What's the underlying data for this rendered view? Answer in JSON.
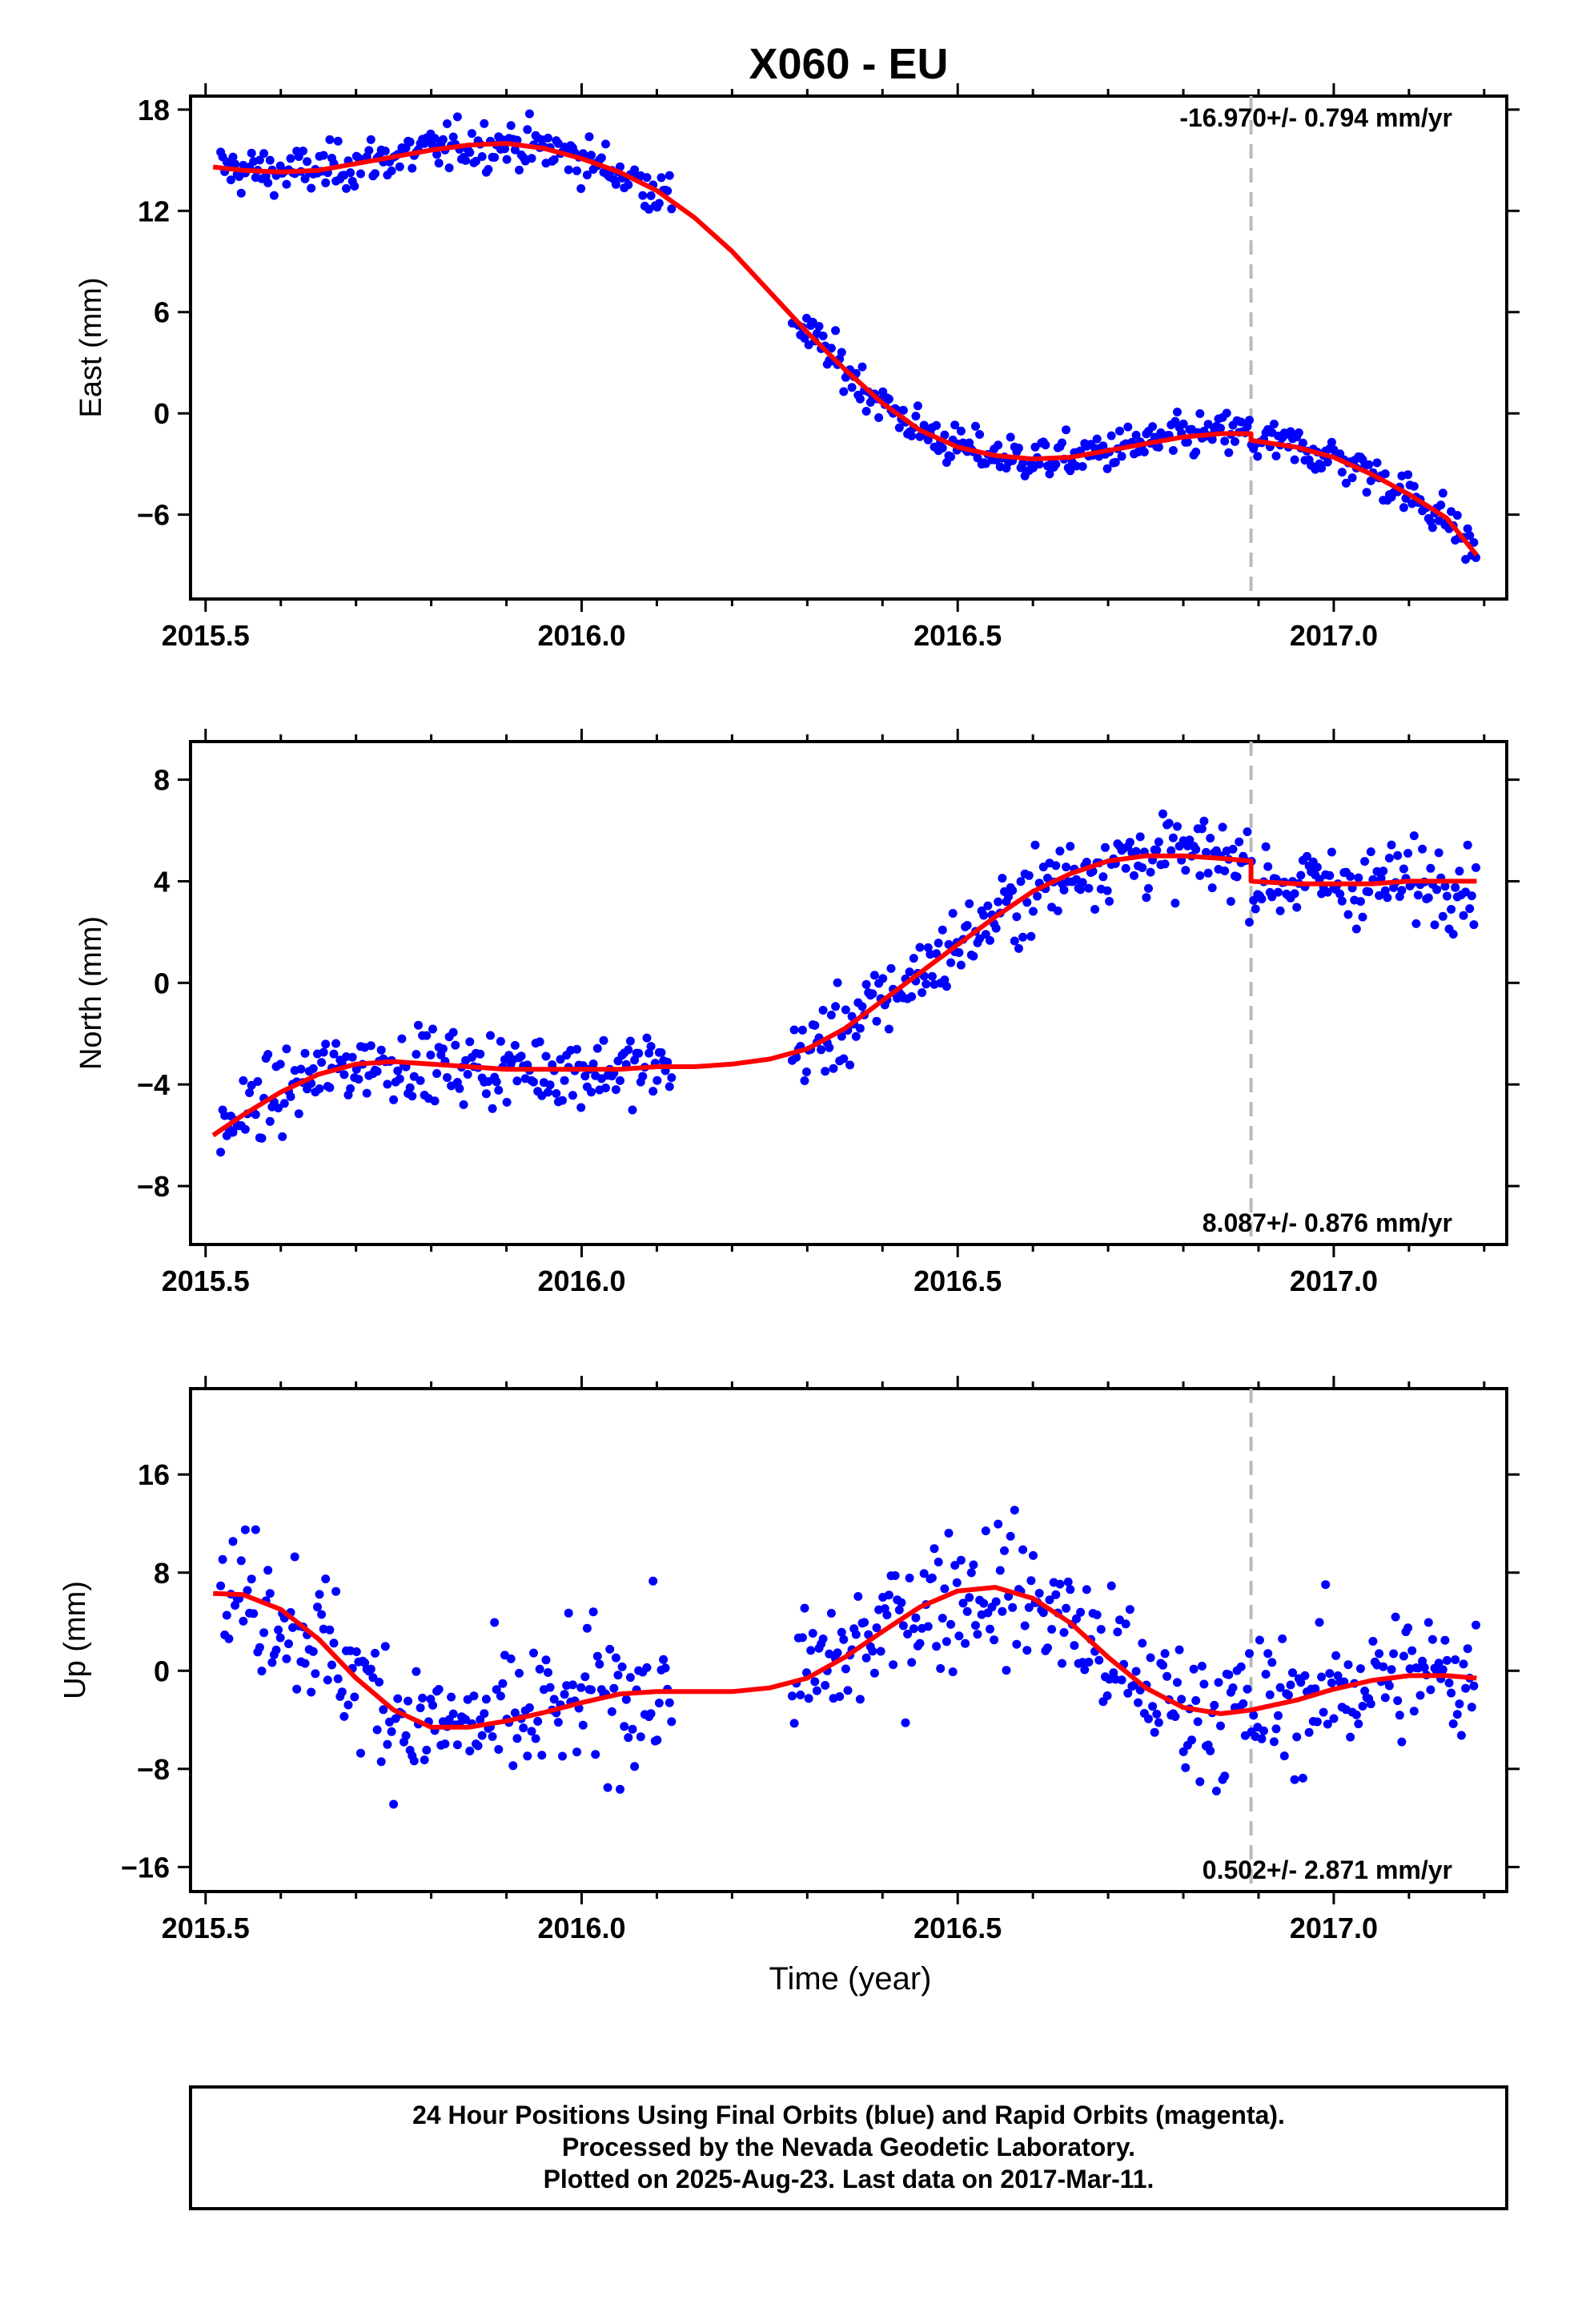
{
  "chart_data": {
    "type": "scatter",
    "title": "X060 - EU",
    "xlabel": "Time (year)",
    "xlim": [
      2015.48,
      2017.23
    ],
    "x_ticks": [
      2015.5,
      2016.0,
      2016.5,
      2017.0
    ],
    "x_tick_labels": [
      "2015.5",
      "2016.0",
      "2016.5",
      "2017.0"
    ],
    "equipment_change": 2016.89,
    "point_color": "#0000ff",
    "fit_color": "#ff0000",
    "marker_color": "#bbbbbb",
    "panels": [
      {
        "ylabel": "East (mm)",
        "ylim": [
          -11.0,
          18.8
        ],
        "y_ticks": [
          18,
          12,
          6,
          0,
          -6
        ],
        "y_tick_labels": [
          "18",
          "12",
          "6",
          "0",
          "−6"
        ],
        "rate_text": "-16.970+/- 0.794 mm/yr",
        "rate_position": "top-right",
        "fit": [
          [
            2015.51,
            14.6
          ],
          [
            2015.55,
            14.4
          ],
          [
            2015.6,
            14.3
          ],
          [
            2015.65,
            14.4
          ],
          [
            2015.7,
            14.8
          ],
          [
            2015.75,
            15.2
          ],
          [
            2015.8,
            15.6
          ],
          [
            2015.85,
            15.9
          ],
          [
            2015.9,
            16.0
          ],
          [
            2015.95,
            15.7
          ],
          [
            2016.0,
            15.1
          ],
          [
            2016.05,
            14.3
          ],
          [
            2016.1,
            13.2
          ],
          [
            2016.15,
            11.6
          ],
          [
            2016.2,
            9.6
          ],
          [
            2016.25,
            7.2
          ],
          [
            2016.3,
            4.8
          ],
          [
            2016.35,
            2.6
          ],
          [
            2016.4,
            0.6
          ],
          [
            2016.45,
            -1.0
          ],
          [
            2016.5,
            -2.0
          ],
          [
            2016.55,
            -2.5
          ],
          [
            2016.6,
            -2.7
          ],
          [
            2016.65,
            -2.6
          ],
          [
            2016.7,
            -2.2
          ],
          [
            2016.75,
            -1.8
          ],
          [
            2016.8,
            -1.4
          ],
          [
            2016.85,
            -1.2
          ],
          [
            2016.89,
            -1.2
          ],
          [
            2016.89,
            -1.6
          ],
          [
            2016.95,
            -2.0
          ],
          [
            2017.0,
            -2.6
          ],
          [
            2017.05,
            -3.6
          ],
          [
            2017.1,
            -4.8
          ],
          [
            2017.15,
            -6.2
          ],
          [
            2017.19,
            -8.4
          ]
        ],
        "segments": [
          {
            "x0": 2015.52,
            "x1": 2016.12,
            "noise": 1.1
          },
          {
            "x0": 2016.28,
            "x1": 2017.19,
            "noise": 1.0
          }
        ]
      },
      {
        "ylabel": "North (mm)",
        "ylim": [
          -10.3,
          9.5
        ],
        "y_ticks": [
          8,
          4,
          0,
          -4,
          -8
        ],
        "y_tick_labels": [
          "8",
          "4",
          "0",
          "−4",
          "−8"
        ],
        "rate_text": "8.087+/- 0.876 mm/yr",
        "rate_position": "bottom-right",
        "fit": [
          [
            2015.51,
            -6.0
          ],
          [
            2015.55,
            -5.2
          ],
          [
            2015.6,
            -4.3
          ],
          [
            2015.65,
            -3.6
          ],
          [
            2015.7,
            -3.2
          ],
          [
            2015.75,
            -3.1
          ],
          [
            2015.8,
            -3.2
          ],
          [
            2015.85,
            -3.3
          ],
          [
            2015.9,
            -3.4
          ],
          [
            2015.95,
            -3.4
          ],
          [
            2016.0,
            -3.4
          ],
          [
            2016.05,
            -3.4
          ],
          [
            2016.1,
            -3.3
          ],
          [
            2016.15,
            -3.3
          ],
          [
            2016.2,
            -3.2
          ],
          [
            2016.25,
            -3.0
          ],
          [
            2016.3,
            -2.6
          ],
          [
            2016.35,
            -1.8
          ],
          [
            2016.4,
            -0.7
          ],
          [
            2016.45,
            0.4
          ],
          [
            2016.5,
            1.5
          ],
          [
            2016.55,
            2.6
          ],
          [
            2016.6,
            3.6
          ],
          [
            2016.65,
            4.3
          ],
          [
            2016.7,
            4.8
          ],
          [
            2016.75,
            5.0
          ],
          [
            2016.8,
            5.0
          ],
          [
            2016.85,
            4.9
          ],
          [
            2016.89,
            4.8
          ],
          [
            2016.89,
            4.0
          ],
          [
            2016.95,
            3.9
          ],
          [
            2017.0,
            3.9
          ],
          [
            2017.05,
            3.9
          ],
          [
            2017.1,
            4.0
          ],
          [
            2017.15,
            4.0
          ],
          [
            2017.19,
            4.0
          ]
        ],
        "segments": [
          {
            "x0": 2015.52,
            "x1": 2016.12,
            "noise": 1.1
          },
          {
            "x0": 2016.28,
            "x1": 2017.19,
            "noise": 1.2
          }
        ]
      },
      {
        "ylabel": "Up (mm)",
        "ylim": [
          -18.0,
          23.0
        ],
        "y_ticks": [
          16,
          8,
          0,
          -8,
          -16
        ],
        "y_tick_labels": [
          "16",
          "8",
          "0",
          "−8",
          "−16"
        ],
        "rate_text": "0.502+/- 2.871 mm/yr",
        "rate_position": "bottom-right",
        "fit": [
          [
            2015.51,
            6.3
          ],
          [
            2015.55,
            6.2
          ],
          [
            2015.6,
            5.0
          ],
          [
            2015.65,
            2.6
          ],
          [
            2015.7,
            -0.6
          ],
          [
            2015.75,
            -3.2
          ],
          [
            2015.8,
            -4.6
          ],
          [
            2015.85,
            -4.6
          ],
          [
            2015.9,
            -4.1
          ],
          [
            2015.95,
            -3.4
          ],
          [
            2016.0,
            -2.6
          ],
          [
            2016.05,
            -1.9
          ],
          [
            2016.1,
            -1.7
          ],
          [
            2016.15,
            -1.7
          ],
          [
            2016.2,
            -1.7
          ],
          [
            2016.25,
            -1.4
          ],
          [
            2016.3,
            -0.6
          ],
          [
            2016.35,
            1.1
          ],
          [
            2016.4,
            3.2
          ],
          [
            2016.45,
            5.2
          ],
          [
            2016.5,
            6.5
          ],
          [
            2016.55,
            6.8
          ],
          [
            2016.6,
            5.9
          ],
          [
            2016.65,
            3.9
          ],
          [
            2016.7,
            1.1
          ],
          [
            2016.75,
            -1.4
          ],
          [
            2016.8,
            -3.0
          ],
          [
            2016.85,
            -3.5
          ],
          [
            2016.89,
            -3.2
          ],
          [
            2016.95,
            -2.4
          ],
          [
            2017.0,
            -1.5
          ],
          [
            2017.05,
            -0.8
          ],
          [
            2017.1,
            -0.4
          ],
          [
            2017.15,
            -0.4
          ],
          [
            2017.19,
            -0.6
          ]
        ],
        "segments": [
          {
            "x0": 2015.52,
            "x1": 2016.12,
            "noise": 4.5
          },
          {
            "x0": 2016.28,
            "x1": 2017.19,
            "noise": 4.5
          }
        ]
      }
    ]
  },
  "footer": {
    "line1": "24 Hour Positions Using Final Orbits (blue) and Rapid Orbits (magenta).",
    "line2": "Processed by the Nevada Geodetic Laboratory.",
    "line3": "Plotted on 2025-Aug-23. Last data on 2017-Mar-11."
  }
}
